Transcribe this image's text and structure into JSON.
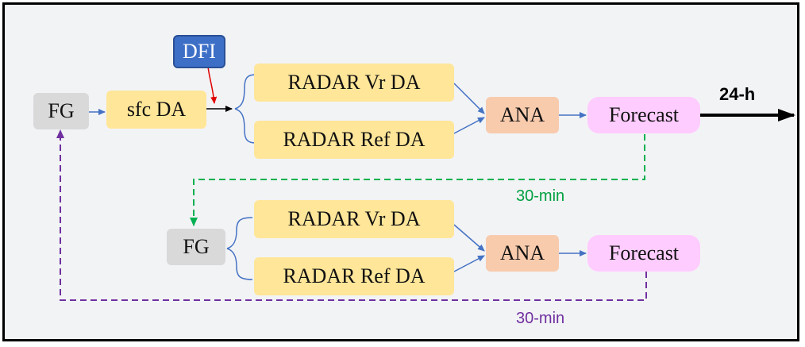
{
  "diagram": {
    "cycle1": {
      "dfi": "DFI",
      "fg": "FG",
      "sfc": "sfc DA",
      "vr": "RADAR Vr DA",
      "ref": "RADAR Ref DA",
      "ana": "ANA",
      "forecast": "Forecast",
      "lead_label": "24-h"
    },
    "cycle2": {
      "fg": "FG",
      "vr": "RADAR Vr DA",
      "ref": "RADAR Ref DA",
      "ana": "ANA",
      "forecast": "Forecast"
    },
    "links": {
      "green_label": "30-min",
      "purple_label": "30-min"
    },
    "colors": {
      "blue_arrow": "#4472c4",
      "green_dashed": "#00b050",
      "purple_dashed": "#7030a0",
      "red_arrow": "#e00000"
    }
  }
}
